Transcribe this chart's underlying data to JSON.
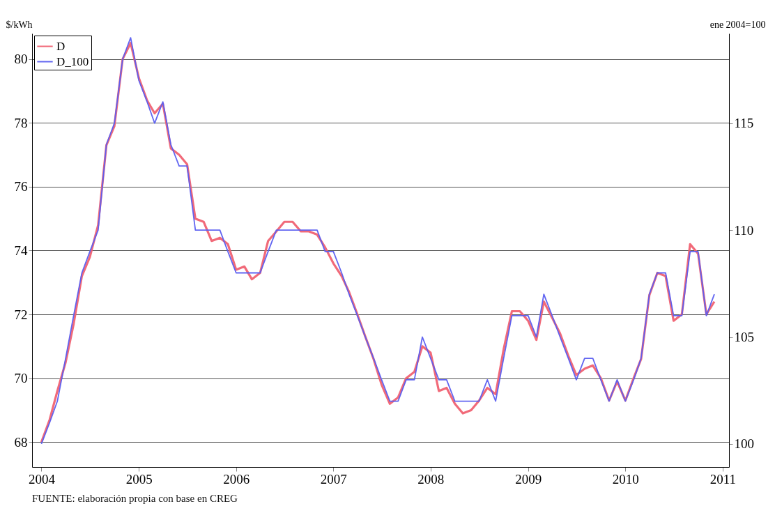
{
  "chart_data": {
    "type": "line",
    "ylabel": "$/kWh",
    "y2label": "ene 2004=100",
    "annotations": [
      "FUENTE: elaboración propia con base en CREG"
    ],
    "x": [
      "2004-01",
      "2004-02",
      "2004-03",
      "2004-04",
      "2004-05",
      "2004-06",
      "2004-07",
      "2004-08",
      "2004-09",
      "2004-10",
      "2004-11",
      "2004-12",
      "2005-01",
      "2005-02",
      "2005-03",
      "2005-04",
      "2005-05",
      "2005-06",
      "2005-07",
      "2005-08",
      "2005-09",
      "2005-10",
      "2005-11",
      "2005-12",
      "2006-01",
      "2006-02",
      "2006-03",
      "2006-04",
      "2006-05",
      "2006-06",
      "2006-07",
      "2006-08",
      "2006-09",
      "2006-10",
      "2006-11",
      "2006-12",
      "2007-01",
      "2007-02",
      "2007-03",
      "2007-04",
      "2007-05",
      "2007-06",
      "2007-07",
      "2007-08",
      "2007-09",
      "2007-10",
      "2007-11",
      "2007-12",
      "2008-01",
      "2008-02",
      "2008-03",
      "2008-04",
      "2008-05",
      "2008-06",
      "2008-07",
      "2008-08",
      "2008-09",
      "2008-10",
      "2008-11",
      "2008-12",
      "2009-01",
      "2009-02",
      "2009-03",
      "2009-04",
      "2009-05",
      "2009-06",
      "2009-07",
      "2009-08",
      "2009-09",
      "2009-10",
      "2009-11",
      "2009-12",
      "2010-01",
      "2010-02",
      "2010-03",
      "2010-04",
      "2010-05",
      "2010-06",
      "2010-07",
      "2010-08",
      "2010-09",
      "2010-10",
      "2010-11",
      "2010-12"
    ],
    "series": [
      {
        "name": "D",
        "color": "#f06272",
        "values": [
          68.0,
          68.7,
          69.6,
          70.5,
          71.7,
          73.2,
          73.8,
          74.8,
          77.3,
          77.9,
          80.0,
          80.5,
          79.4,
          78.7,
          78.3,
          78.6,
          77.2,
          77.0,
          76.7,
          75.0,
          74.9,
          74.3,
          74.4,
          74.2,
          73.4,
          73.5,
          73.1,
          73.3,
          74.3,
          74.6,
          74.9,
          74.9,
          74.6,
          74.6,
          74.5,
          74.1,
          73.6,
          73.2,
          72.7,
          72.0,
          71.3,
          70.6,
          69.8,
          69.2,
          69.4,
          70.0,
          70.2,
          71.0,
          70.8,
          69.6,
          69.7,
          69.2,
          68.9,
          69.0,
          69.3,
          69.7,
          69.5,
          70.9,
          72.1,
          72.1,
          71.8,
          71.2,
          72.4,
          71.9,
          71.4,
          70.7,
          70.1,
          70.3,
          70.4,
          70.0,
          69.3,
          69.9,
          69.3,
          70.0,
          70.6,
          72.6,
          73.3,
          73.2,
          71.8,
          72.0,
          74.2,
          73.9,
          72.0,
          72.4
        ]
      },
      {
        "name": "D_100",
        "color": "#5a5ef0",
        "axis": "y2",
        "values": [
          100,
          101,
          102,
          104,
          106,
          108,
          109,
          110,
          114,
          115,
          118,
          119,
          117,
          116,
          115,
          116,
          114,
          113,
          113,
          110,
          110,
          110,
          110,
          109,
          108,
          108,
          108,
          108,
          109,
          110,
          110,
          110,
          110,
          110,
          110,
          109,
          109,
          108,
          107,
          106,
          105,
          104,
          103,
          102,
          102,
          103,
          103,
          105,
          104,
          103,
          103,
          102,
          102,
          102,
          102,
          103,
          102,
          104,
          106,
          106,
          106,
          105,
          107,
          106,
          105,
          104,
          103,
          104,
          104,
          103,
          102,
          103,
          102,
          103,
          104,
          107,
          108,
          108,
          106,
          106,
          109,
          109,
          106,
          107
        ]
      }
    ],
    "xlim": [
      "2003-11-27",
      "2011-01-25"
    ],
    "xticks": [
      "2004",
      "2005",
      "2006",
      "2007",
      "2008",
      "2009",
      "2010",
      "2011"
    ],
    "ylim": [
      67.22,
      80.8
    ],
    "yticks": [
      68,
      70,
      72,
      74,
      76,
      78,
      80
    ],
    "y2lim": [
      98.92,
      119.2
    ],
    "y2ticks": [
      100,
      105,
      110,
      115
    ],
    "grid": "y",
    "legend": "top left"
  }
}
